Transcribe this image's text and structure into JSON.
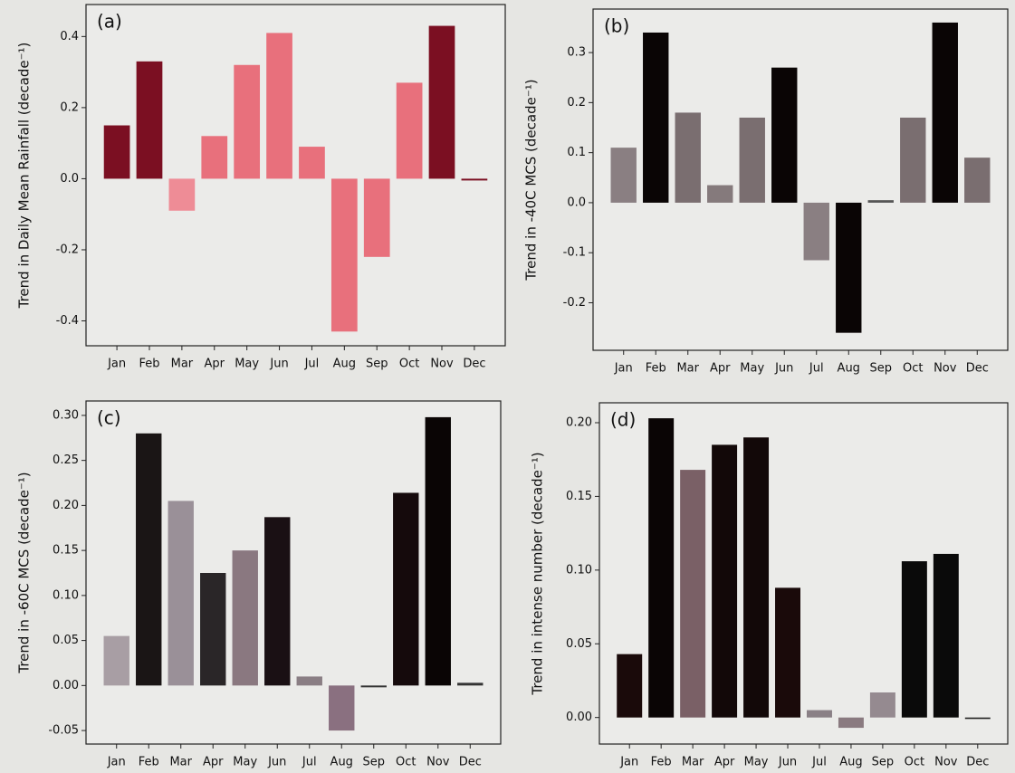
{
  "chart_data": [
    {
      "type": "bar",
      "label": "(a)",
      "ylabel": "Trend in Daily Mean Rainfall (decade⁻¹)",
      "categories": [
        "Jan",
        "Feb",
        "Mar",
        "Apr",
        "May",
        "Jun",
        "Jul",
        "Aug",
        "Sep",
        "Oct",
        "Nov",
        "Dec"
      ],
      "values": [
        0.15,
        0.33,
        -0.09,
        0.12,
        0.32,
        0.41,
        0.09,
        -0.43,
        -0.22,
        0.27,
        0.43,
        -0.005
      ],
      "colors": [
        "#7b0f22",
        "#7b0f22",
        "#ee8c96",
        "#e8707c",
        "#e8707c",
        "#e8707c",
        "#e8707c",
        "#e8707c",
        "#e8707c",
        "#e8707c",
        "#7b0f22",
        "#7b0f22"
      ],
      "ylim": [
        -0.47,
        0.49
      ],
      "yticks": [
        -0.4,
        -0.2,
        {
          "value": 0,
          "label": "0.0"
        },
        0.2,
        0.4
      ]
    },
    {
      "type": "bar",
      "label": "(b)",
      "ylabel": "Trend in -40C MCS (decade⁻¹)",
      "categories": [
        "Jan",
        "Feb",
        "Mar",
        "Apr",
        "May",
        "Jun",
        "Jul",
        "Aug",
        "Sep",
        "Oct",
        "Nov",
        "Dec"
      ],
      "values": [
        0.11,
        0.34,
        0.18,
        0.035,
        0.17,
        0.27,
        -0.115,
        -0.26,
        0.005,
        0.17,
        0.36,
        0.09
      ],
      "colors": [
        "#8a7f82",
        "#0a0505",
        "#7a6e70",
        "#857a7c",
        "#7a6e70",
        "#0a0505",
        "#8a7f82",
        "#0a0505",
        "#555",
        "#7a6e70",
        "#0a0505",
        "#7a6e70"
      ],
      "ylim": [
        -0.295,
        0.387
      ],
      "yticks": [
        -0.2,
        -0.1,
        {
          "value": 0,
          "label": "0.0"
        },
        0.1,
        0.2,
        0.3
      ]
    },
    {
      "type": "bar",
      "label": "(c)",
      "ylabel": "Trend in -60C MCS (decade⁻¹)",
      "categories": [
        "Jan",
        "Feb",
        "Mar",
        "Apr",
        "May",
        "Jun",
        "Jul",
        "Aug",
        "Sep",
        "Oct",
        "Nov",
        "Dec"
      ],
      "values": [
        0.055,
        0.28,
        0.205,
        0.125,
        0.15,
        0.187,
        0.01,
        -0.05,
        -0.002,
        0.214,
        0.298,
        0.003
      ],
      "colors": [
        "#a89ea4",
        "#1a1515",
        "#9a9098",
        "#2a2628",
        "#8a7880",
        "#1a1014",
        "#8a7e84",
        "#8a7080",
        "#333333",
        "#150a0c",
        "#0a0505",
        "#333333"
      ],
      "ylim": [
        -0.065,
        0.316
      ],
      "yticks": [
        -0.05,
        {
          "value": 0,
          "label": "0.00"
        },
        0.05,
        {
          "value": 0.1,
          "label": "0.10"
        },
        0.15,
        {
          "value": 0.2,
          "label": "0.20"
        },
        0.25,
        {
          "value": 0.3,
          "label": "0.30"
        }
      ]
    },
    {
      "type": "bar",
      "label": "(d)",
      "ylabel": "Trend in intense number (decade⁻¹)",
      "categories": [
        "Jan",
        "Feb",
        "Mar",
        "Apr",
        "May",
        "Jun",
        "Jul",
        "Aug",
        "Sep",
        "Oct",
        "Nov",
        "Dec"
      ],
      "values": [
        0.043,
        0.203,
        0.168,
        0.185,
        0.19,
        0.088,
        0.005,
        -0.007,
        0.017,
        0.106,
        0.111,
        -0.001
      ],
      "colors": [
        "#1a0a0a",
        "#0a0505",
        "#7a6066",
        "#120808",
        "#120808",
        "#1a0a0a",
        "#8a8086",
        "#8a7a80",
        "#958a90",
        "#0a0a0a",
        "#0a0a0a",
        "#222222"
      ],
      "ylim": [
        -0.018,
        0.2135
      ],
      "yticks": [
        {
          "value": 0,
          "label": "0.00"
        },
        0.05,
        {
          "value": 0.1,
          "label": "0.10"
        },
        0.15,
        {
          "value": 0.2,
          "label": "0.20"
        }
      ]
    }
  ]
}
